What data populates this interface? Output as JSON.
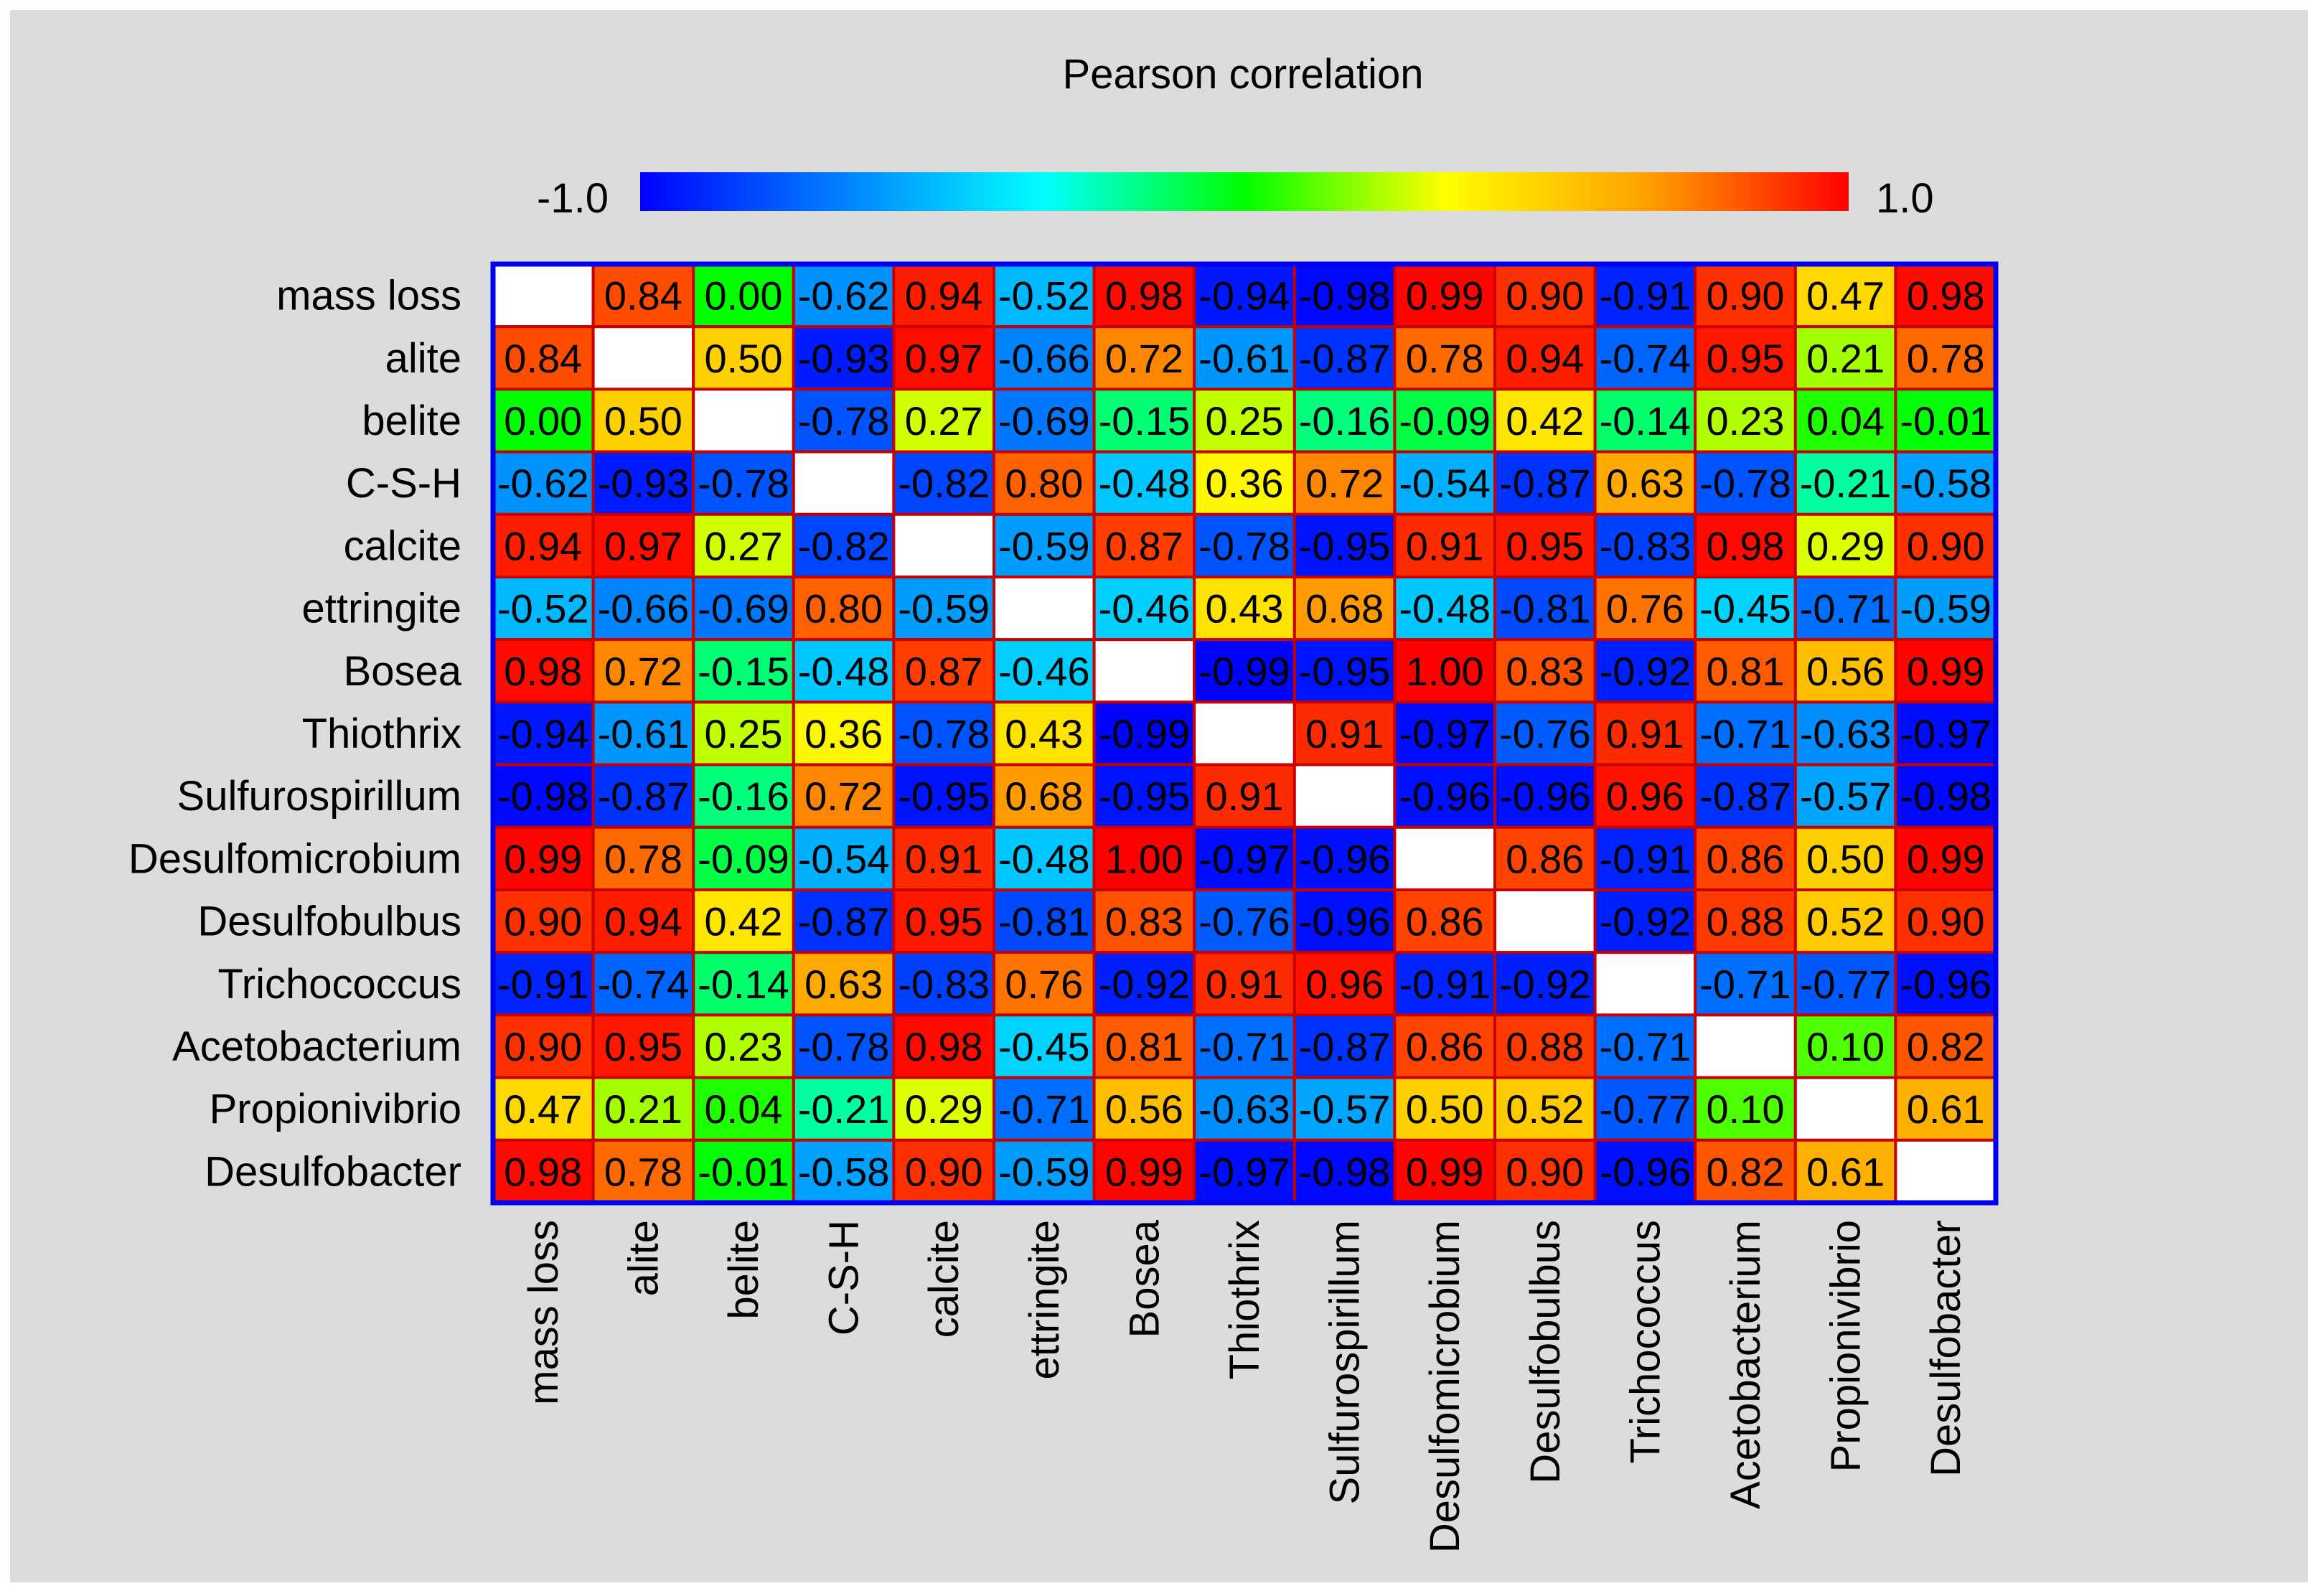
{
  "chart_data": {
    "type": "heatmap",
    "title": "Pearson correlation",
    "colorbar": {
      "min": -1.0,
      "max": 1.0,
      "min_label": "-1.0",
      "max_label": "1.0",
      "colormap": [
        "#0000ff",
        "#0080ff",
        "#00ffff",
        "#00ff00",
        "#ffff00",
        "#ffa000",
        "#ff0000"
      ]
    },
    "labels": [
      "mass loss",
      "alite",
      "belite",
      "C-S-H",
      "calcite",
      "ettringite",
      "Bosea",
      "Thiothrix",
      "Sulfurospirillum",
      "Desulfomicrobium",
      "Desulfobulbus",
      "Trichococcus",
      "Acetobacterium",
      "Propionivibrio",
      "Desulfobacter"
    ],
    "diagonal": "blank",
    "matrix": [
      [
        null,
        "0.84",
        "0.00",
        "-0.62",
        "0.94",
        "-0.52",
        "0.98",
        "-0.94",
        "-0.98",
        "0.99",
        "0.90",
        "-0.91",
        "0.90",
        "0.47",
        "0.98"
      ],
      [
        "0.84",
        null,
        "0.50",
        "-0.93",
        "0.97",
        "-0.66",
        "0.72",
        "-0.61",
        "-0.87",
        "0.78",
        "0.94",
        "-0.74",
        "0.95",
        "0.21",
        "0.78"
      ],
      [
        "0.00",
        "0.50",
        null,
        "-0.78",
        "0.27",
        "-0.69",
        "-0.15",
        "0.25",
        "-0.16",
        "-0.09",
        "0.42",
        "-0.14",
        "0.23",
        "0.04",
        "-0.01"
      ],
      [
        "-0.62",
        "-0.93",
        "-0.78",
        null,
        "-0.82",
        "0.80",
        "-0.48",
        "0.36",
        "0.72",
        "-0.54",
        "-0.87",
        "0.63",
        "-0.78",
        "-0.21",
        "-0.58"
      ],
      [
        "0.94",
        "0.97",
        "0.27",
        "-0.82",
        null,
        "-0.59",
        "0.87",
        "-0.78",
        "-0.95",
        "0.91",
        "0.95",
        "-0.83",
        "0.98",
        "0.29",
        "0.90"
      ],
      [
        "-0.52",
        "-0.66",
        "-0.69",
        "0.80",
        "-0.59",
        null,
        "-0.46",
        "0.43",
        "0.68",
        "-0.48",
        "-0.81",
        "0.76",
        "-0.45",
        "-0.71",
        "-0.59"
      ],
      [
        "0.98",
        "0.72",
        "-0.15",
        "-0.48",
        "0.87",
        "-0.46",
        null,
        "-0.99",
        "-0.95",
        "1.00",
        "0.83",
        "-0.92",
        "0.81",
        "0.56",
        "0.99"
      ],
      [
        "-0.94",
        "-0.61",
        "0.25",
        "0.36",
        "-0.78",
        "0.43",
        "-0.99",
        null,
        "0.91",
        "-0.97",
        "-0.76",
        "0.91",
        "-0.71",
        "-0.63",
        "-0.97"
      ],
      [
        "-0.98",
        "-0.87",
        "-0.16",
        "0.72",
        "-0.95",
        "0.68",
        "-0.95",
        "0.91",
        null,
        "-0.96",
        "-0.96",
        "0.96",
        "-0.87",
        "-0.57",
        "-0.98"
      ],
      [
        "0.99",
        "0.78",
        "-0.09",
        "-0.54",
        "0.91",
        "-0.48",
        "1.00",
        "-0.97",
        "-0.96",
        null,
        "0.86",
        "-0.91",
        "0.86",
        "0.50",
        "0.99"
      ],
      [
        "0.90",
        "0.94",
        "0.42",
        "-0.87",
        "0.95",
        "-0.81",
        "0.83",
        "-0.76",
        "-0.96",
        "0.86",
        null,
        "-0.92",
        "0.88",
        "0.52",
        "0.90"
      ],
      [
        "-0.91",
        "-0.74",
        "-0.14",
        "0.63",
        "-0.83",
        "0.76",
        "-0.92",
        "0.91",
        "0.96",
        "-0.91",
        "-0.92",
        null,
        "-0.71",
        "-0.77",
        "-0.96"
      ],
      [
        "0.90",
        "0.95",
        "0.23",
        "-0.78",
        "0.98",
        "-0.45",
        "0.81",
        "-0.71",
        "-0.87",
        "0.86",
        "0.88",
        "-0.71",
        null,
        "0.10",
        "0.82"
      ],
      [
        "0.47",
        "0.21",
        "0.04",
        "-0.21",
        "0.29",
        "-0.71",
        "0.56",
        "-0.63",
        "-0.57",
        "0.50",
        "0.52",
        "-0.77",
        "0.10",
        null,
        "0.61"
      ],
      [
        "0.98",
        "0.78",
        "-0.01",
        "-0.58",
        "0.90",
        "-0.59",
        "0.99",
        "-0.97",
        "-0.98",
        "0.99",
        "0.90",
        "-0.96",
        "0.82",
        "0.61",
        null
      ]
    ]
  },
  "colors": {
    "background": "#dcdcdc",
    "cell_border": "#c80000",
    "frame": "#0000ee",
    "text": "#000000",
    "blank_cell": "#ffffff"
  }
}
